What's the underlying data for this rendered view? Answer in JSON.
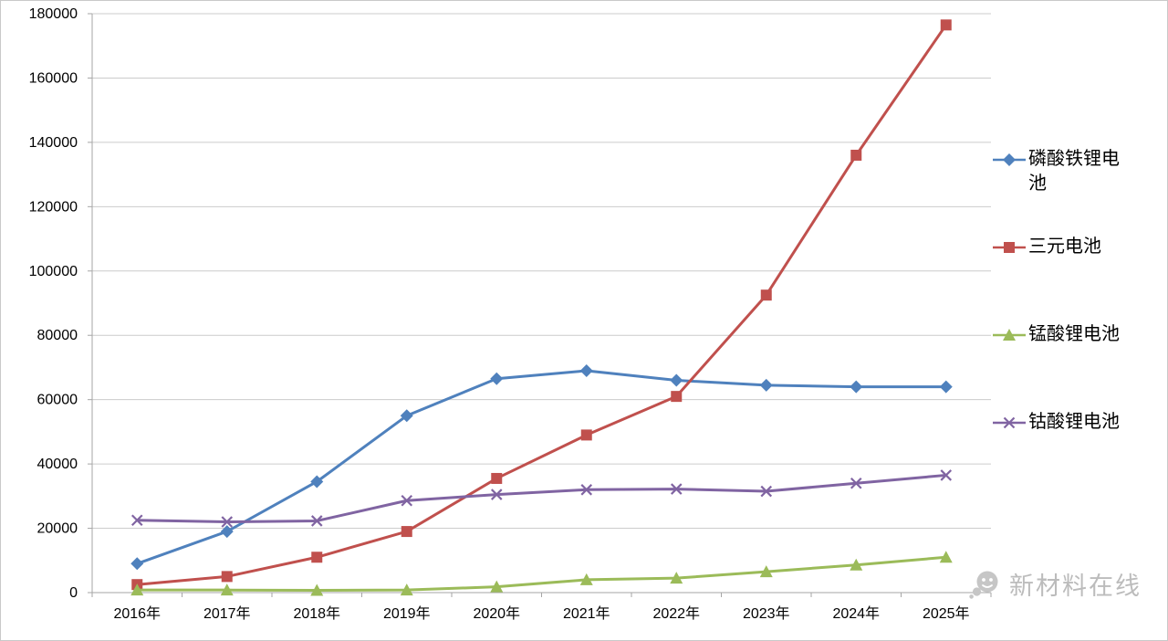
{
  "chart_data": {
    "type": "line",
    "title": "",
    "xlabel": "",
    "ylabel": "",
    "grid": true,
    "legend_position": "right",
    "ylim": [
      0,
      180000
    ],
    "yticks": [
      0,
      20000,
      40000,
      60000,
      80000,
      100000,
      120000,
      140000,
      160000,
      180000
    ],
    "categories": [
      "2016年",
      "2017年",
      "2018年",
      "2019年",
      "2020年",
      "2021年",
      "2022年",
      "2023年",
      "2024年",
      "2025年"
    ],
    "series": [
      {
        "name": "磷酸铁锂电池",
        "color": "#4f81bd",
        "marker": "diamond",
        "values": [
          9000,
          19000,
          34500,
          55000,
          66500,
          69000,
          66000,
          64500,
          64000,
          64000
        ]
      },
      {
        "name": "三元电池",
        "color": "#c0504d",
        "marker": "square",
        "values": [
          2500,
          5000,
          11000,
          19000,
          35500,
          49000,
          61000,
          92500,
          136000,
          176500
        ]
      },
      {
        "name": "锰酸锂电池",
        "color": "#9bbb59",
        "marker": "triangle",
        "values": [
          800,
          800,
          700,
          800,
          1800,
          4000,
          4500,
          6500,
          8600,
          11000
        ]
      },
      {
        "name": "钴酸锂电池",
        "color": "#8064a2",
        "marker": "x",
        "values": [
          22500,
          22000,
          22300,
          28600,
          30500,
          32000,
          32200,
          31500,
          34000,
          36500
        ]
      }
    ],
    "colors": {
      "grid": "#cccccc",
      "axis": "#a6a6a6",
      "text": "#000000"
    }
  },
  "watermark": {
    "text": "新材料在线",
    "color": "#bcbcbc"
  }
}
